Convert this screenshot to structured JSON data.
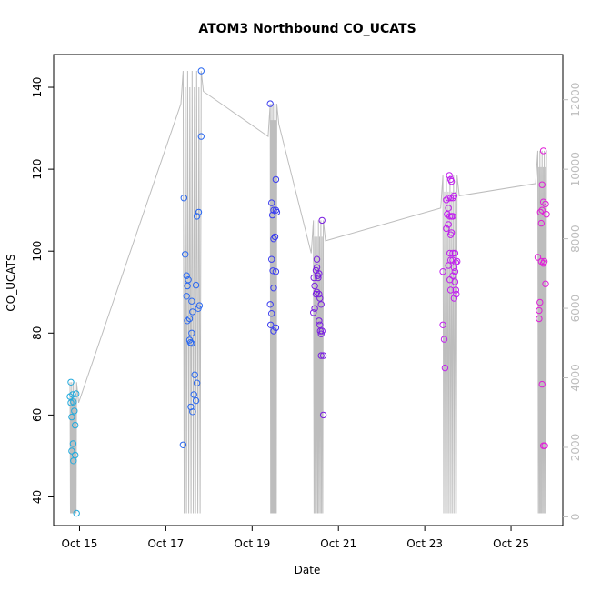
{
  "chart_data": {
    "type": "scatter",
    "title": "ATOM3 Northbound CO_UCATS",
    "xlabel": "Date",
    "ylabel": "CO_UCATS",
    "x_tick_labels": [
      "Oct 15",
      "Oct 17",
      "Oct 19",
      "Oct 21",
      "Oct 23",
      "Oct 25"
    ],
    "x_tick_days": [
      15,
      17,
      19,
      21,
      23,
      25
    ],
    "xlim": [
      14.4,
      26.2
    ],
    "ylim": [
      33,
      148
    ],
    "y_ticks": [
      40,
      60,
      80,
      100,
      120,
      140
    ],
    "y2_ticks": [
      0,
      2000,
      4000,
      6000,
      8000,
      10000,
      12000
    ],
    "y2lim": [
      -250,
      13300
    ],
    "secondary_series_color": "#bdbdbd",
    "grid": false,
    "series": [
      {
        "color": "#22aadd",
        "points": [
          [
            14.78,
            64.5
          ],
          [
            14.8,
            63
          ],
          [
            14.8,
            68
          ],
          [
            14.82,
            59.5
          ],
          [
            14.84,
            65
          ],
          [
            14.86,
            63.2
          ],
          [
            14.82,
            51.2
          ],
          [
            14.85,
            53
          ],
          [
            14.86,
            48.8
          ],
          [
            14.88,
            61
          ],
          [
            14.9,
            57.5
          ],
          [
            14.9,
            50.2
          ],
          [
            14.92,
            65.2
          ],
          [
            14.93,
            36
          ]
        ]
      },
      {
        "color": "#2a68f0",
        "points": [
          [
            17.42,
            113
          ],
          [
            17.45,
            99.2
          ],
          [
            17.48,
            94
          ],
          [
            17.5,
            91.5
          ],
          [
            17.48,
            89
          ],
          [
            17.5,
            83
          ],
          [
            17.52,
            93
          ],
          [
            17.55,
            83.5
          ],
          [
            17.55,
            78.3
          ],
          [
            17.57,
            77.7
          ],
          [
            17.6,
            77.5
          ],
          [
            17.6,
            80
          ],
          [
            17.62,
            85.2
          ],
          [
            17.6,
            87.8
          ],
          [
            17.58,
            62
          ],
          [
            17.62,
            60.8
          ],
          [
            17.65,
            65
          ],
          [
            17.67,
            69.8
          ],
          [
            17.7,
            63.5
          ],
          [
            17.72,
            67.8
          ],
          [
            17.7,
            91.7
          ],
          [
            17.75,
            86
          ],
          [
            17.78,
            86.7
          ],
          [
            17.72,
            108.5
          ],
          [
            17.76,
            109.5
          ],
          [
            17.82,
            128
          ],
          [
            17.82,
            144
          ],
          [
            17.4,
            52.7
          ]
        ]
      },
      {
        "color": "#3b3ef0",
        "points": [
          [
            19.42,
            136
          ],
          [
            19.45,
            111.8
          ],
          [
            19.47,
            108.8
          ],
          [
            19.5,
            110
          ],
          [
            19.55,
            110
          ],
          [
            19.5,
            103
          ],
          [
            19.53,
            103.5
          ],
          [
            19.55,
            117.5
          ],
          [
            19.57,
            109.5
          ],
          [
            19.45,
            98
          ],
          [
            19.48,
            95.2
          ],
          [
            19.55,
            95
          ],
          [
            19.5,
            91
          ],
          [
            19.42,
            87
          ],
          [
            19.45,
            84.8
          ],
          [
            19.43,
            82
          ],
          [
            19.5,
            80.5
          ],
          [
            19.55,
            81.3
          ]
        ]
      },
      {
        "color": "#7a1fe0",
        "points": [
          [
            20.42,
            85
          ],
          [
            20.45,
            91.5
          ],
          [
            20.43,
            93.5
          ],
          [
            20.48,
            89.5
          ],
          [
            20.5,
            90
          ],
          [
            20.45,
            86
          ],
          [
            20.48,
            95.3
          ],
          [
            20.5,
            98
          ],
          [
            20.52,
            94
          ],
          [
            20.55,
            94.5
          ],
          [
            20.5,
            96
          ],
          [
            20.53,
            93.5
          ],
          [
            20.55,
            89.5
          ],
          [
            20.57,
            88.5
          ],
          [
            20.6,
            87
          ],
          [
            20.55,
            83
          ],
          [
            20.57,
            82
          ],
          [
            20.58,
            80.5
          ],
          [
            20.6,
            79.8
          ],
          [
            20.62,
            80.5
          ],
          [
            20.6,
            74.5
          ],
          [
            20.65,
            74.5
          ],
          [
            20.62,
            107.5
          ],
          [
            20.65,
            60
          ]
        ]
      },
      {
        "color": "#c21ff0",
        "points": [
          [
            23.42,
            95
          ],
          [
            23.45,
            78.5
          ],
          [
            23.42,
            82
          ],
          [
            23.47,
            71.5
          ],
          [
            23.5,
            112.5
          ],
          [
            23.52,
            109
          ],
          [
            23.55,
            110.5
          ],
          [
            23.5,
            105.5
          ],
          [
            23.55,
            106.5
          ],
          [
            23.57,
            118.5
          ],
          [
            23.6,
            117.5
          ],
          [
            23.62,
            117
          ],
          [
            23.55,
            113
          ],
          [
            23.6,
            113
          ],
          [
            23.65,
            113
          ],
          [
            23.68,
            113.5
          ],
          [
            23.58,
            108.5
          ],
          [
            23.62,
            108.5
          ],
          [
            23.65,
            108.5
          ],
          [
            23.6,
            104
          ],
          [
            23.62,
            104.5
          ],
          [
            23.58,
            99.5
          ],
          [
            23.65,
            99.5
          ],
          [
            23.7,
            99.5
          ],
          [
            23.55,
            96.5
          ],
          [
            23.6,
            97.8
          ],
          [
            23.65,
            97.8
          ],
          [
            23.68,
            96
          ],
          [
            23.72,
            97.2
          ],
          [
            23.58,
            93
          ],
          [
            23.65,
            94
          ],
          [
            23.7,
            95
          ],
          [
            23.6,
            90.5
          ],
          [
            23.7,
            92.5
          ],
          [
            23.72,
            90.5
          ],
          [
            23.75,
            97.5
          ],
          [
            23.68,
            88.5
          ],
          [
            23.73,
            89.5
          ]
        ]
      },
      {
        "color": "#e01fd8",
        "points": [
          [
            25.62,
            98.5
          ],
          [
            25.65,
            85.5
          ],
          [
            25.67,
            87.5
          ],
          [
            25.65,
            83.5
          ],
          [
            25.68,
            109.5
          ],
          [
            25.7,
            106.8
          ],
          [
            25.72,
            110
          ],
          [
            25.7,
            97.5
          ],
          [
            25.75,
            97
          ],
          [
            25.77,
            97.5
          ],
          [
            25.75,
            112
          ],
          [
            25.8,
            111.5
          ],
          [
            25.82,
            109
          ],
          [
            25.72,
            116.2
          ],
          [
            25.75,
            124.5
          ],
          [
            25.72,
            67.5
          ],
          [
            25.75,
            52.5
          ],
          [
            25.78,
            52.5
          ],
          [
            25.8,
            92
          ]
        ]
      }
    ]
  }
}
